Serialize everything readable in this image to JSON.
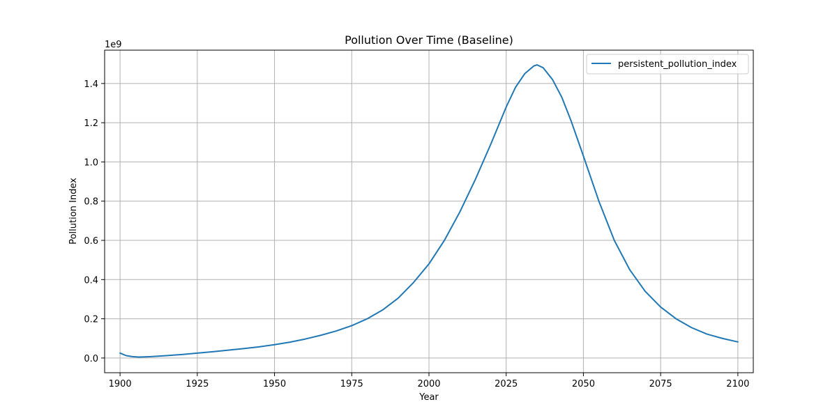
{
  "chart_data": {
    "type": "line",
    "title": "Pollution Over Time (Baseline)",
    "xlabel": "Year",
    "ylabel": "Pollution Index",
    "y_multiplier_label": "1e9",
    "xlim": [
      1895,
      2105
    ],
    "ylim": [
      -0.075,
      1.57
    ],
    "y_unit_multiplier": 1000000000,
    "x_ticks": [
      1900,
      1925,
      1950,
      1975,
      2000,
      2025,
      2050,
      2075,
      2100
    ],
    "y_ticks": [
      0.0,
      0.2,
      0.4,
      0.6,
      0.8,
      1.0,
      1.2,
      1.4
    ],
    "y_tick_labels": [
      "0.0",
      "0.2",
      "0.4",
      "0.6",
      "0.8",
      "1.0",
      "1.2",
      "1.4"
    ],
    "grid": true,
    "legend_position": "top-right",
    "series": [
      {
        "name": "persistent_pollution_index",
        "color": "#1f77b4",
        "x": [
          1900,
          1902,
          1904,
          1906,
          1908,
          1910,
          1915,
          1920,
          1925,
          1930,
          1935,
          1940,
          1945,
          1950,
          1955,
          1960,
          1965,
          1970,
          1975,
          1980,
          1985,
          1990,
          1995,
          2000,
          2005,
          2010,
          2015,
          2020,
          2025,
          2028,
          2031,
          2034,
          2035,
          2037,
          2040,
          2043,
          2046,
          2050,
          2055,
          2060,
          2065,
          2070,
          2075,
          2080,
          2085,
          2090,
          2095,
          2100
        ],
        "y": [
          0.025,
          0.012,
          0.007,
          0.005,
          0.006,
          0.007,
          0.012,
          0.018,
          0.025,
          0.032,
          0.04,
          0.048,
          0.057,
          0.068,
          0.081,
          0.097,
          0.116,
          0.138,
          0.165,
          0.2,
          0.245,
          0.305,
          0.385,
          0.48,
          0.6,
          0.745,
          0.91,
          1.09,
          1.28,
          1.38,
          1.45,
          1.49,
          1.495,
          1.48,
          1.42,
          1.33,
          1.21,
          1.03,
          0.8,
          0.6,
          0.45,
          0.34,
          0.26,
          0.2,
          0.155,
          0.122,
          0.1,
          0.082
        ]
      }
    ]
  }
}
